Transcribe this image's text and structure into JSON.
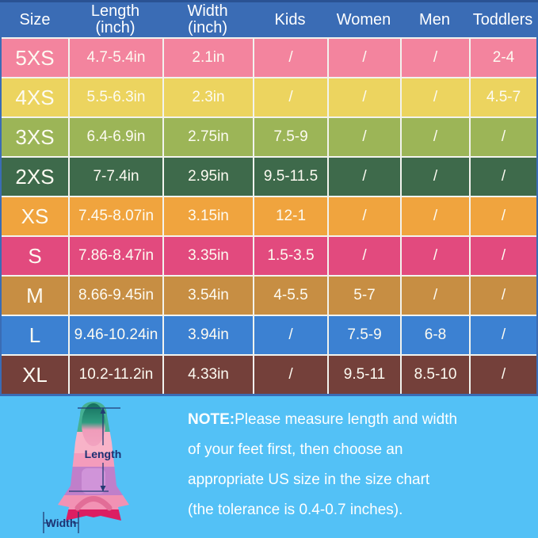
{
  "chart_data": {
    "type": "table",
    "columns": [
      {
        "label": "Size",
        "sub": ""
      },
      {
        "label": "Length",
        "sub": "(inch)"
      },
      {
        "label": "Width",
        "sub": "(inch)"
      },
      {
        "label": "Kids",
        "sub": ""
      },
      {
        "label": "Women",
        "sub": ""
      },
      {
        "label": "Men",
        "sub": ""
      },
      {
        "label": "Toddlers",
        "sub": ""
      }
    ],
    "column_keys": [
      "size",
      "length",
      "width",
      "kids",
      "women",
      "men",
      "toddlers"
    ],
    "rows": [
      {
        "cells": [
          "5XS",
          "4.7-5.4in",
          "2.1in",
          "/",
          "/",
          "/",
          "2-4"
        ],
        "bg": "#f3849e"
      },
      {
        "cells": [
          "4XS",
          "5.5-6.3in",
          "2.3in",
          "/",
          "/",
          "/",
          "4.5-7"
        ],
        "bg": "#ecd45f"
      },
      {
        "cells": [
          "3XS",
          "6.4-6.9in",
          "2.75in",
          "7.5-9",
          "/",
          "/",
          "/"
        ],
        "bg": "#9cb557"
      },
      {
        "cells": [
          "2XS",
          "7-7.4in",
          "2.95in",
          "9.5-11.5",
          "/",
          "/",
          "/"
        ],
        "bg": "#3e6a4b"
      },
      {
        "cells": [
          "XS",
          "7.45-8.07in",
          "3.15in",
          "12-1",
          "/",
          "/",
          "/"
        ],
        "bg": "#f0a43e"
      },
      {
        "cells": [
          "S",
          "7.86-8.47in",
          "3.35in",
          "1.5-3.5",
          "/",
          "/",
          "/"
        ],
        "bg": "#e24a7e"
      },
      {
        "cells": [
          "M",
          "8.66-9.45in",
          "3.54in",
          "4-5.5",
          "5-7",
          "/",
          "/"
        ],
        "bg": "#c78e43"
      },
      {
        "cells": [
          "L",
          "9.46-10.24in",
          "3.94in",
          "/",
          "7.5-9",
          "6-8",
          "/"
        ],
        "bg": "#3c81d2"
      },
      {
        "cells": [
          "XL",
          "10.2-11.2in",
          "4.33in",
          "/",
          "9.5-11",
          "8.5-10",
          "/"
        ],
        "bg": "#74403a"
      }
    ]
  },
  "note": {
    "prefix": "NOTE:",
    "lines": [
      "Please measure length and width",
      "of your feet first, then choose an",
      "appropriate US size in the size chart",
      "(the tolerance is 0.4-0.7 inches)."
    ]
  },
  "diagram": {
    "length_label": "Length",
    "width_label": "Width"
  },
  "colors": {
    "table_bg": "#3a6cb5",
    "table_top": "#2a5293",
    "grid_line": "#f2f3ee",
    "header_text": "#ffffff",
    "cell_text": "#fdfbf2",
    "panel_bg": "#53c1f6",
    "note_text": "#ffffff",
    "dimension_line": "#233b73",
    "label_text": "#1d3272",
    "fin_tip": "#45b093",
    "fin_band_light_pink": "#f8b3c8",
    "fin_band_pink": "#f49cbc",
    "fin_band_purple": "#c07fca",
    "fin_band_lower_pink": "#f292b4",
    "fin_base": "#dc1e62",
    "fin_opening": "#156f5e",
    "fin_heel": "#e26d97"
  }
}
